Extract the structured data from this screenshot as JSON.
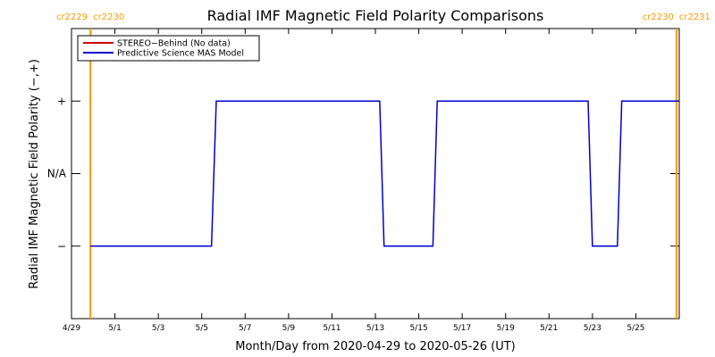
{
  "chart_data": {
    "type": "line",
    "title": "Radial IMF Magnetic Field Polarity Comparisons",
    "xlabel": "Month/Day from 2020-04-29 to 2020-05-26 (UT)",
    "ylabel": "Radial IMF Magnetic Field Polarity (−,+)",
    "xlim": [
      0,
      28
    ],
    "ylim": [
      -2,
      2
    ],
    "x_ticks": [
      {
        "value": 0,
        "label": "4/29"
      },
      {
        "value": 2,
        "label": "5/1"
      },
      {
        "value": 4,
        "label": "5/3"
      },
      {
        "value": 6,
        "label": "5/5"
      },
      {
        "value": 8,
        "label": "5/7"
      },
      {
        "value": 10,
        "label": "5/9"
      },
      {
        "value": 12,
        "label": "5/11"
      },
      {
        "value": 14,
        "label": "5/13"
      },
      {
        "value": 16,
        "label": "5/15"
      },
      {
        "value": 18,
        "label": "5/17"
      },
      {
        "value": 20,
        "label": "5/19"
      },
      {
        "value": 22,
        "label": "5/21"
      },
      {
        "value": 24,
        "label": "5/23"
      },
      {
        "value": 26,
        "label": "5/25"
      }
    ],
    "y_ticks": [
      {
        "value": 1,
        "label": "+"
      },
      {
        "value": 0,
        "label": "N/A"
      },
      {
        "value": -1,
        "label": "−"
      }
    ],
    "carrington_markers": [
      {
        "x": 0.87,
        "label_left": "cr2229",
        "label_right": "cr2230",
        "color": "#ff9900"
      },
      {
        "x": 27.87,
        "label_left": "cr2230",
        "label_right": "cr2231",
        "color": "#ff9900"
      }
    ],
    "legend": {
      "placement": "top-left",
      "entries": [
        {
          "label": "STEREO−Behind (No data)",
          "color": "#cc0000"
        },
        {
          "label": "Predictive Science MAS Model",
          "color": "#0000cc"
        }
      ]
    },
    "series": [
      {
        "name": "Predictive Science MAS Model",
        "color": "#0000cc",
        "points": [
          [
            0.87,
            -1
          ],
          [
            6.45,
            -1
          ],
          [
            6.67,
            1
          ],
          [
            14.2,
            1
          ],
          [
            14.4,
            -1
          ],
          [
            16.65,
            -1
          ],
          [
            16.85,
            1
          ],
          [
            23.8,
            1
          ],
          [
            24.0,
            -1
          ],
          [
            25.15,
            -1
          ],
          [
            25.35,
            1
          ],
          [
            28.0,
            1
          ]
        ]
      }
    ]
  }
}
